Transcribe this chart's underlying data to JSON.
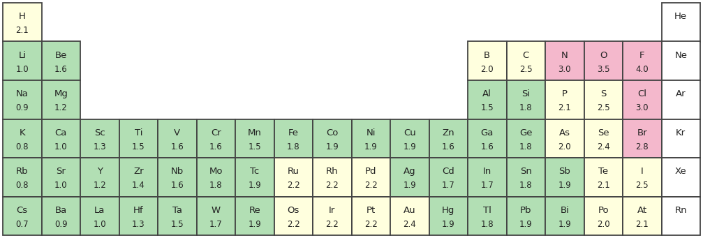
{
  "elements": [
    {
      "symbol": "H",
      "val": "2.1",
      "row": 0,
      "col": 0,
      "color": "#ffffde"
    },
    {
      "symbol": "He",
      "val": "",
      "row": 0,
      "col": 17,
      "color": "#ffffff"
    },
    {
      "symbol": "Li",
      "val": "1.0",
      "row": 1,
      "col": 0,
      "color": "#b2dfb4"
    },
    {
      "symbol": "Be",
      "val": "1.6",
      "row": 1,
      "col": 1,
      "color": "#b2dfb4"
    },
    {
      "symbol": "B",
      "val": "2.0",
      "row": 1,
      "col": 12,
      "color": "#ffffde"
    },
    {
      "symbol": "C",
      "val": "2.5",
      "row": 1,
      "col": 13,
      "color": "#ffffde"
    },
    {
      "symbol": "N",
      "val": "3.0",
      "row": 1,
      "col": 14,
      "color": "#f4b8cc"
    },
    {
      "symbol": "O",
      "val": "3.5",
      "row": 1,
      "col": 15,
      "color": "#f4b8cc"
    },
    {
      "symbol": "F",
      "val": "4.0",
      "row": 1,
      "col": 16,
      "color": "#f4b8cc"
    },
    {
      "symbol": "Ne",
      "val": "",
      "row": 1,
      "col": 17,
      "color": "#ffffff"
    },
    {
      "symbol": "Na",
      "val": "0.9",
      "row": 2,
      "col": 0,
      "color": "#b2dfb4"
    },
    {
      "symbol": "Mg",
      "val": "1.2",
      "row": 2,
      "col": 1,
      "color": "#b2dfb4"
    },
    {
      "symbol": "Al",
      "val": "1.5",
      "row": 2,
      "col": 12,
      "color": "#b2dfb4"
    },
    {
      "symbol": "Si",
      "val": "1.8",
      "row": 2,
      "col": 13,
      "color": "#b2dfb4"
    },
    {
      "symbol": "P",
      "val": "2.1",
      "row": 2,
      "col": 14,
      "color": "#ffffde"
    },
    {
      "symbol": "S",
      "val": "2.5",
      "row": 2,
      "col": 15,
      "color": "#ffffde"
    },
    {
      "symbol": "Cl",
      "val": "3.0",
      "row": 2,
      "col": 16,
      "color": "#f4b8cc"
    },
    {
      "symbol": "Ar",
      "val": "",
      "row": 2,
      "col": 17,
      "color": "#ffffff"
    },
    {
      "symbol": "K",
      "val": "0.8",
      "row": 3,
      "col": 0,
      "color": "#b2dfb4"
    },
    {
      "symbol": "Ca",
      "val": "1.0",
      "row": 3,
      "col": 1,
      "color": "#b2dfb4"
    },
    {
      "symbol": "Sc",
      "val": "1.3",
      "row": 3,
      "col": 2,
      "color": "#b2dfb4"
    },
    {
      "symbol": "Ti",
      "val": "1.5",
      "row": 3,
      "col": 3,
      "color": "#b2dfb4"
    },
    {
      "symbol": "V",
      "val": "1.6",
      "row": 3,
      "col": 4,
      "color": "#b2dfb4"
    },
    {
      "symbol": "Cr",
      "val": "1.6",
      "row": 3,
      "col": 5,
      "color": "#b2dfb4"
    },
    {
      "symbol": "Mn",
      "val": "1.5",
      "row": 3,
      "col": 6,
      "color": "#b2dfb4"
    },
    {
      "symbol": "Fe",
      "val": "1.8",
      "row": 3,
      "col": 7,
      "color": "#b2dfb4"
    },
    {
      "symbol": "Co",
      "val": "1.9",
      "row": 3,
      "col": 8,
      "color": "#b2dfb4"
    },
    {
      "symbol": "Ni",
      "val": "1.9",
      "row": 3,
      "col": 9,
      "color": "#b2dfb4"
    },
    {
      "symbol": "Cu",
      "val": "1.9",
      "row": 3,
      "col": 10,
      "color": "#b2dfb4"
    },
    {
      "symbol": "Zn",
      "val": "1.6",
      "row": 3,
      "col": 11,
      "color": "#b2dfb4"
    },
    {
      "symbol": "Ga",
      "val": "1.6",
      "row": 3,
      "col": 12,
      "color": "#b2dfb4"
    },
    {
      "symbol": "Ge",
      "val": "1.8",
      "row": 3,
      "col": 13,
      "color": "#b2dfb4"
    },
    {
      "symbol": "As",
      "val": "2.0",
      "row": 3,
      "col": 14,
      "color": "#ffffde"
    },
    {
      "symbol": "Se",
      "val": "2.4",
      "row": 3,
      "col": 15,
      "color": "#ffffde"
    },
    {
      "symbol": "Br",
      "val": "2.8",
      "row": 3,
      "col": 16,
      "color": "#f4b8cc"
    },
    {
      "symbol": "Kr",
      "val": "",
      "row": 3,
      "col": 17,
      "color": "#ffffff"
    },
    {
      "symbol": "Rb",
      "val": "0.8",
      "row": 4,
      "col": 0,
      "color": "#b2dfb4"
    },
    {
      "symbol": "Sr",
      "val": "1.0",
      "row": 4,
      "col": 1,
      "color": "#b2dfb4"
    },
    {
      "symbol": "Y",
      "val": "1.2",
      "row": 4,
      "col": 2,
      "color": "#b2dfb4"
    },
    {
      "symbol": "Zr",
      "val": "1.4",
      "row": 4,
      "col": 3,
      "color": "#b2dfb4"
    },
    {
      "symbol": "Nb",
      "val": "1.6",
      "row": 4,
      "col": 4,
      "color": "#b2dfb4"
    },
    {
      "symbol": "Mo",
      "val": "1.8",
      "row": 4,
      "col": 5,
      "color": "#b2dfb4"
    },
    {
      "symbol": "Tc",
      "val": "1.9",
      "row": 4,
      "col": 6,
      "color": "#b2dfb4"
    },
    {
      "symbol": "Ru",
      "val": "2.2",
      "row": 4,
      "col": 7,
      "color": "#ffffde"
    },
    {
      "symbol": "Rh",
      "val": "2.2",
      "row": 4,
      "col": 8,
      "color": "#ffffde"
    },
    {
      "symbol": "Pd",
      "val": "2.2",
      "row": 4,
      "col": 9,
      "color": "#ffffde"
    },
    {
      "symbol": "Ag",
      "val": "1.9",
      "row": 4,
      "col": 10,
      "color": "#b2dfb4"
    },
    {
      "symbol": "Cd",
      "val": "1.7",
      "row": 4,
      "col": 11,
      "color": "#b2dfb4"
    },
    {
      "symbol": "In",
      "val": "1.7",
      "row": 4,
      "col": 12,
      "color": "#b2dfb4"
    },
    {
      "symbol": "Sn",
      "val": "1.8",
      "row": 4,
      "col": 13,
      "color": "#b2dfb4"
    },
    {
      "symbol": "Sb",
      "val": "1.9",
      "row": 4,
      "col": 14,
      "color": "#b2dfb4"
    },
    {
      "symbol": "Te",
      "val": "2.1",
      "row": 4,
      "col": 15,
      "color": "#ffffde"
    },
    {
      "symbol": "I",
      "val": "2.5",
      "row": 4,
      "col": 16,
      "color": "#ffffde"
    },
    {
      "symbol": "Xe",
      "val": "",
      "row": 4,
      "col": 17,
      "color": "#ffffff"
    },
    {
      "symbol": "Cs",
      "val": "0.7",
      "row": 5,
      "col": 0,
      "color": "#b2dfb4"
    },
    {
      "symbol": "Ba",
      "val": "0.9",
      "row": 5,
      "col": 1,
      "color": "#b2dfb4"
    },
    {
      "symbol": "La",
      "val": "1.0",
      "row": 5,
      "col": 2,
      "color": "#b2dfb4"
    },
    {
      "symbol": "Hf",
      "val": "1.3",
      "row": 5,
      "col": 3,
      "color": "#b2dfb4"
    },
    {
      "symbol": "Ta",
      "val": "1.5",
      "row": 5,
      "col": 4,
      "color": "#b2dfb4"
    },
    {
      "symbol": "W",
      "val": "1.7",
      "row": 5,
      "col": 5,
      "color": "#b2dfb4"
    },
    {
      "symbol": "Re",
      "val": "1.9",
      "row": 5,
      "col": 6,
      "color": "#b2dfb4"
    },
    {
      "symbol": "Os",
      "val": "2.2",
      "row": 5,
      "col": 7,
      "color": "#ffffde"
    },
    {
      "symbol": "Ir",
      "val": "2.2",
      "row": 5,
      "col": 8,
      "color": "#ffffde"
    },
    {
      "symbol": "Pt",
      "val": "2.2",
      "row": 5,
      "col": 9,
      "color": "#ffffde"
    },
    {
      "symbol": "Au",
      "val": "2.4",
      "row": 5,
      "col": 10,
      "color": "#ffffde"
    },
    {
      "symbol": "Hg",
      "val": "1.9",
      "row": 5,
      "col": 11,
      "color": "#b2dfb4"
    },
    {
      "symbol": "Tl",
      "val": "1.8",
      "row": 5,
      "col": 12,
      "color": "#b2dfb4"
    },
    {
      "symbol": "Pb",
      "val": "1.9",
      "row": 5,
      "col": 13,
      "color": "#b2dfb4"
    },
    {
      "symbol": "Bi",
      "val": "1.9",
      "row": 5,
      "col": 14,
      "color": "#b2dfb4"
    },
    {
      "symbol": "Po",
      "val": "2.0",
      "row": 5,
      "col": 15,
      "color": "#ffffde"
    },
    {
      "symbol": "At",
      "val": "2.1",
      "row": 5,
      "col": 16,
      "color": "#ffffde"
    },
    {
      "symbol": "Rn",
      "val": "",
      "row": 5,
      "col": 17,
      "color": "#ffffff"
    }
  ],
  "nrows": 6,
  "ncols": 18,
  "bg_color": "#ffffff",
  "border_color": "#444444",
  "text_color": "#222222",
  "symbol_fontsize": 9.5,
  "val_fontsize": 8.5,
  "fig_width": 10.07,
  "fig_height": 3.41,
  "dpi": 100
}
